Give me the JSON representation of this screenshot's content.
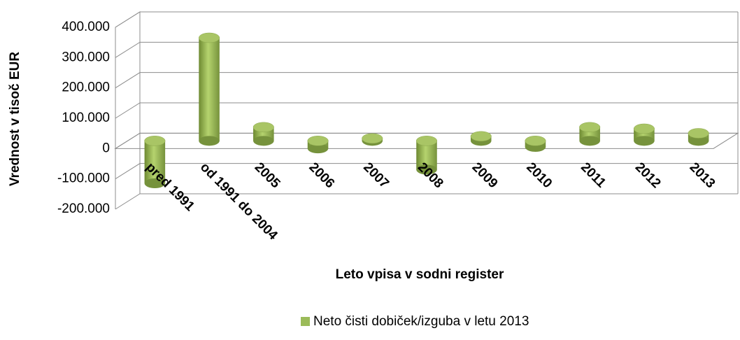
{
  "chart_data": {
    "type": "bar3d",
    "y_label": "Vrednost v tisoč EUR",
    "x_label": "Leto vpisa v sodni register",
    "categories": [
      "pred 1991",
      "od 1991 do 2004",
      "2005",
      "2006",
      "2007",
      "2008",
      "2009",
      "2010",
      "2011",
      "2012",
      "2013"
    ],
    "series": [
      {
        "name": "Neto čisti dobiček/izguba v letu 2013",
        "color": "#9bbb59",
        "values": [
          -140000,
          340000,
          45000,
          -25000,
          8000,
          -95000,
          15000,
          -20000,
          45000,
          40000,
          25000
        ]
      }
    ],
    "ylim": [
      -200000,
      400000
    ],
    "yticks": [
      {
        "value": -200000,
        "label": "-200.000"
      },
      {
        "value": -100000,
        "label": "-100.000"
      },
      0,
      {
        "value": 100000,
        "label": "100.000"
      },
      {
        "value": 200000,
        "label": "200.000"
      },
      {
        "value": 300000,
        "label": "300.000"
      },
      {
        "value": 400000,
        "label": "400.000"
      }
    ],
    "grid": true,
    "legend": "bottom"
  }
}
